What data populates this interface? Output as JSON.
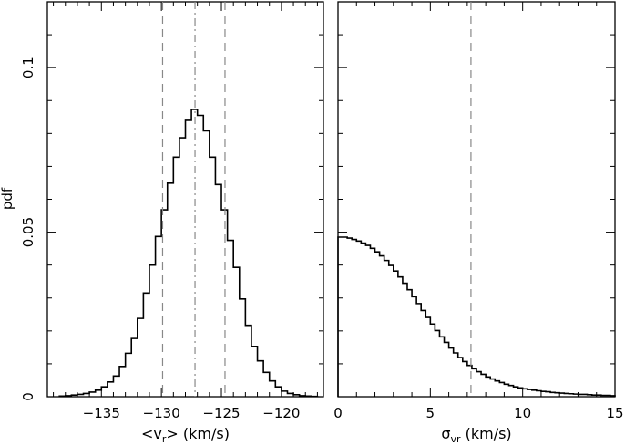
{
  "figure": {
    "ylabel": "pdf"
  },
  "chart_data": [
    {
      "type": "histogram",
      "xlabel": "<v",
      "xlabel_sub": "r",
      "xlabel_tail": "> (km/s)",
      "xlim": [
        -139.5,
        -116.5
      ],
      "ylim": [
        0,
        0.12
      ],
      "xticks": [
        -135,
        -130,
        -125,
        -120
      ],
      "xtick_labels": [
        "−135",
        "−130",
        "−125",
        "−120"
      ],
      "yticks": [
        0,
        0.05,
        0.1
      ],
      "ytick_labels": [
        "0",
        "0.05",
        "0.1"
      ],
      "bin_edges": [
        -138.5,
        -138,
        -137.5,
        -137,
        -136.5,
        -136,
        -135.5,
        -135,
        -134.5,
        -134,
        -133.5,
        -133,
        -132.5,
        -132,
        -131.5,
        -131,
        -130.5,
        -130,
        -129.5,
        -129,
        -128.5,
        -128,
        -127.5,
        -127,
        -126.5,
        -126,
        -125.5,
        -125,
        -124.5,
        -124,
        -123.5,
        -123,
        -122.5,
        -122,
        -121.5,
        -121,
        -120.5,
        -120,
        -119.5,
        -119,
        -118.5,
        -118,
        -117.5,
        -117
      ],
      "values": [
        0.0002,
        0.0003,
        0.0005,
        0.0007,
        0.001,
        0.0014,
        0.002,
        0.003,
        0.0045,
        0.0063,
        0.0092,
        0.0132,
        0.0177,
        0.0238,
        0.0315,
        0.04,
        0.0487,
        0.0568,
        0.0649,
        0.0728,
        0.0787,
        0.084,
        0.0873,
        0.0855,
        0.0808,
        0.0728,
        0.0645,
        0.0568,
        0.0475,
        0.0393,
        0.0297,
        0.0217,
        0.0153,
        0.0109,
        0.0074,
        0.0048,
        0.003,
        0.0017,
        0.001,
        0.0006,
        0.0003,
        0.0002,
        0.0001
      ],
      "vlines": [
        {
          "x": -129.9,
          "style": "dashed"
        },
        {
          "x": -127.2,
          "style": "dashdot"
        },
        {
          "x": -124.7,
          "style": "dashed"
        }
      ]
    },
    {
      "type": "histogram",
      "xlabel": "σ",
      "xlabel_sub": "vr",
      "xlabel_tail": " (km/s)",
      "xlim": [
        0,
        15
      ],
      "ylim": [
        0,
        0.12
      ],
      "xticks": [
        0,
        5,
        10,
        15
      ],
      "xtick_labels": [
        "0",
        "5",
        "10",
        "15"
      ],
      "bin_width": 0.25,
      "values": [
        0.0485,
        0.0485,
        0.0482,
        0.0478,
        0.0473,
        0.0467,
        0.046,
        0.0451,
        0.044,
        0.0428,
        0.0414,
        0.0399,
        0.0382,
        0.0364,
        0.0345,
        0.0325,
        0.0304,
        0.0283,
        0.0262,
        0.0241,
        0.0221,
        0.0201,
        0.0182,
        0.0165,
        0.0148,
        0.0133,
        0.0119,
        0.0107,
        0.0095,
        0.0085,
        0.0076,
        0.0068,
        0.006,
        0.0054,
        0.0048,
        0.0043,
        0.0038,
        0.0034,
        0.003,
        0.0027,
        0.0024,
        0.0022,
        0.002,
        0.0018,
        0.0016,
        0.0015,
        0.0013,
        0.0012,
        0.0011,
        0.001,
        0.0009,
        0.0008,
        0.0007,
        0.0007,
        0.0006,
        0.0005,
        0.0005,
        0.0004,
        0.0004,
        0.0003
      ],
      "vlines": [
        {
          "x": 7.2,
          "style": "dashed"
        }
      ]
    }
  ]
}
